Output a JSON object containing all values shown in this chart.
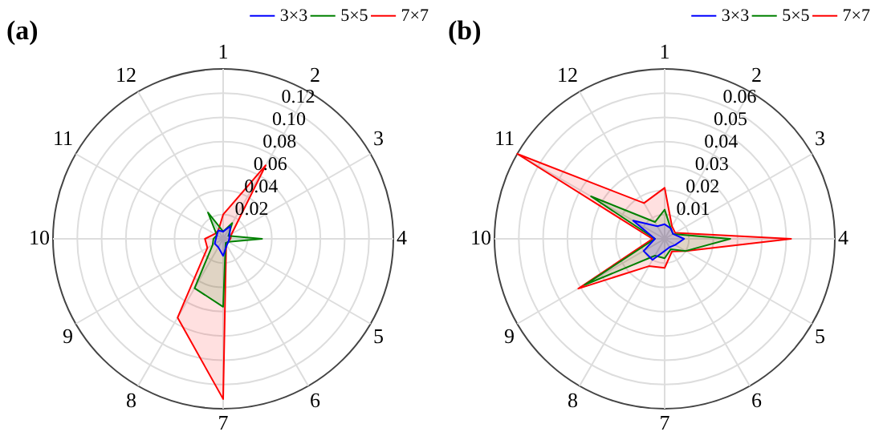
{
  "chart_data": [
    {
      "type": "radar",
      "title": "(a)",
      "categories": [
        "1",
        "2",
        "3",
        "4",
        "5",
        "6",
        "7",
        "8",
        "9",
        "10",
        "11",
        "12"
      ],
      "series": [
        {
          "name": "3×3",
          "color": "#0000ff",
          "values": [
            0.006,
            0.012,
            0.006,
            0.005,
            0.005,
            0.006,
            0.014,
            0.008,
            0.008,
            0.006,
            0.006,
            0.008
          ]
        },
        {
          "name": "5×5",
          "color": "#008000",
          "values": [
            0.006,
            0.015,
            0.005,
            0.032,
            0.005,
            0.004,
            0.056,
            0.047,
            0.01,
            0.008,
            0.006,
            0.025
          ]
        },
        {
          "name": "7×7",
          "color": "#ff0000",
          "values": [
            0.02,
            0.07,
            0.008,
            0.006,
            0.005,
            0.005,
            0.132,
            0.075,
            0.015,
            0.015,
            0.008,
            0.008
          ]
        }
      ],
      "ylim": [
        0,
        0.14
      ],
      "yticks": [
        0.02,
        0.04,
        0.06,
        0.08,
        {
          "value": 0.1,
          "label": "0.10"
        },
        0.12
      ],
      "legend": "top right",
      "grid": true,
      "marker": "none",
      "line_style": "solid"
    },
    {
      "type": "radar",
      "title": "(b)",
      "categories": [
        "1",
        "2",
        "3",
        "4",
        "5",
        "6",
        "7",
        "8",
        "9",
        "10",
        "11",
        "12"
      ],
      "series": [
        {
          "name": "3×3",
          "color": "#0000ff",
          "values": [
            0.006,
            0.005,
            0.004,
            0.008,
            0.005,
            0.004,
            0.005,
            0.01,
            0.01,
            0.004,
            0.015,
            0.006
          ]
        },
        {
          "name": "5×5",
          "color": "#008000",
          "values": [
            0.012,
            0.005,
            0.004,
            0.027,
            0.01,
            0.005,
            0.008,
            0.008,
            0.038,
            0.004,
            0.035,
            0.008
          ]
        },
        {
          "name": "7×7",
          "color": "#ff0000",
          "values": [
            0.021,
            0.006,
            0.005,
            0.052,
            0.01,
            0.006,
            0.012,
            0.013,
            0.041,
            0.005,
            0.07,
            0.017
          ]
        }
      ],
      "ylim": [
        0,
        0.07
      ],
      "yticks": [
        0.01,
        0.02,
        0.03,
        0.04,
        0.05,
        0.06
      ],
      "legend": "top right",
      "grid": true,
      "marker": "none",
      "line_style": "solid"
    }
  ]
}
